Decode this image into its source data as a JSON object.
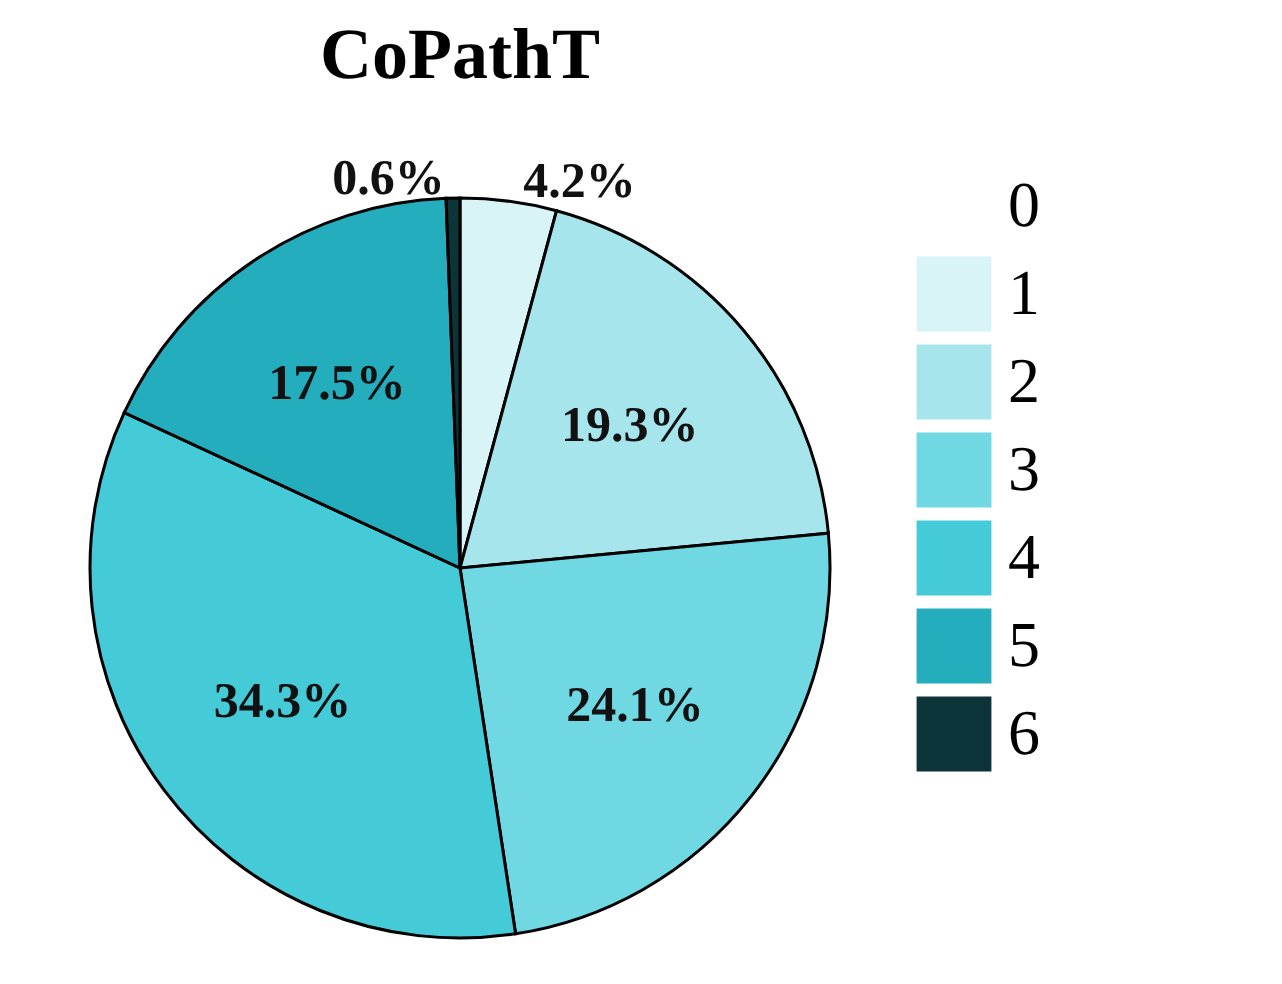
{
  "chart_data": {
    "type": "pie",
    "title": "CoPathT",
    "categories": [
      "0",
      "1",
      "2",
      "3",
      "4",
      "5",
      "6"
    ],
    "values": [
      0,
      4.2,
      19.3,
      24.1,
      34.3,
      17.5,
      0.6
    ],
    "value_labels": [
      null,
      "4.2%",
      "19.3%",
      "24.1%",
      "34.3%",
      "17.5%",
      "0.6%"
    ],
    "colors": [
      "#ffffff",
      "#d8f4f7",
      "#a6e5ec",
      "#6fd8e3",
      "#45cad8",
      "#24aebd",
      "#0d3438"
    ],
    "legend": "right"
  }
}
